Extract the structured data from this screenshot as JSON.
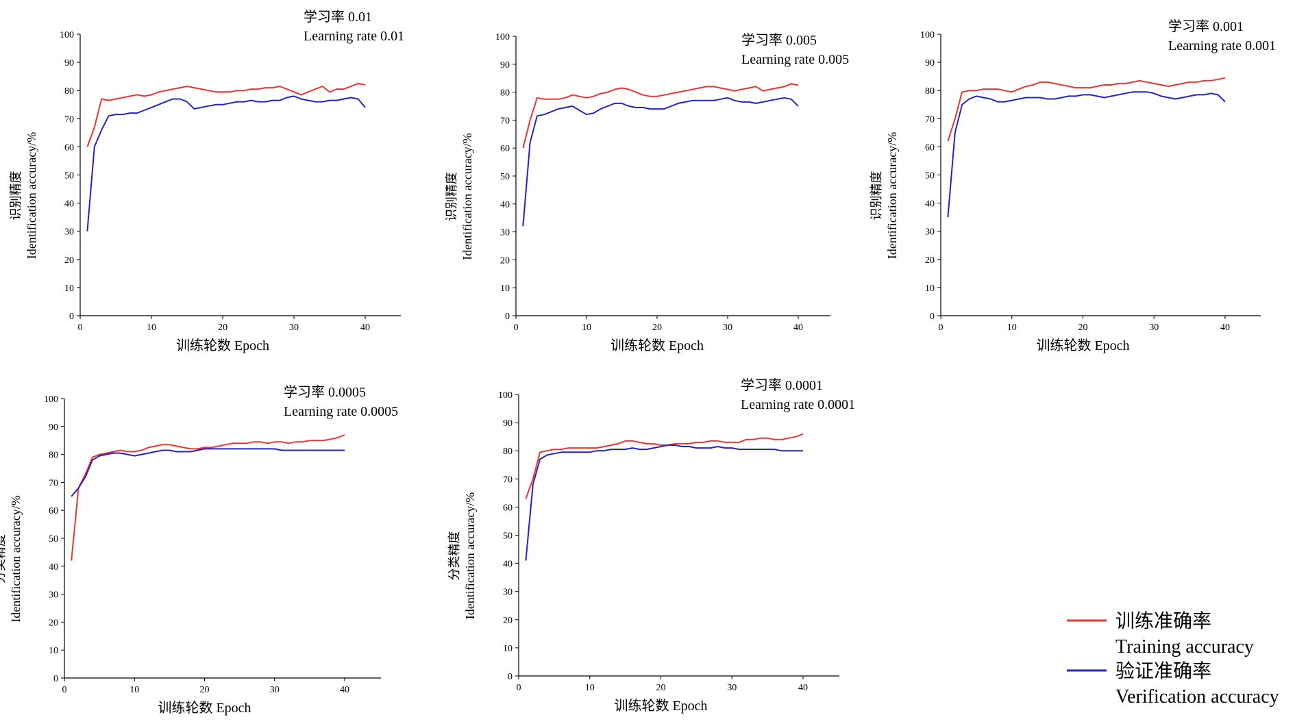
{
  "colors": {
    "training": "#ee3333",
    "verification": "#2222cc",
    "axis": "#000000"
  },
  "legend": {
    "entries": [
      {
        "cn": "训练准确率",
        "en": "Training accuracy",
        "color": "#ee3333"
      },
      {
        "cn": "验证准确率",
        "en": "Verification accuracy",
        "color": "#2222cc"
      }
    ]
  },
  "chart_data": [
    {
      "type": "line",
      "note_cn": "学习率  0.01",
      "note_en": "Learning rate 0.01",
      "ylabel_cn": "识别精度",
      "ylabel_en": "Identification accuracy/%",
      "xlabel": "训练轮数  Epoch",
      "xlim": [
        0,
        40
      ],
      "ylim": [
        0,
        100
      ],
      "xticks": [
        0,
        10,
        20,
        30,
        40
      ],
      "yticks": [
        0,
        10,
        20,
        30,
        40,
        50,
        60,
        70,
        80,
        90,
        100
      ],
      "x": [
        1,
        2,
        3,
        4,
        5,
        6,
        7,
        8,
        9,
        10,
        11,
        12,
        13,
        14,
        15,
        16,
        17,
        18,
        19,
        20,
        21,
        22,
        23,
        24,
        25,
        26,
        27,
        28,
        29,
        30,
        31,
        32,
        33,
        34,
        35,
        36,
        37,
        38,
        39,
        40
      ],
      "series": [
        {
          "key": "training",
          "values": [
            60,
            67,
            77,
            76.5,
            77,
            77.5,
            78,
            78.5,
            78,
            78.5,
            79.5,
            80,
            80.5,
            81,
            81.5,
            81,
            80.5,
            80,
            79.5,
            79.5,
            79.5,
            80,
            80,
            80.5,
            80.5,
            81,
            81,
            81.5,
            80.5,
            79.5,
            78.5,
            79.5,
            80.5,
            81.5,
            79.5,
            80.5,
            80.5,
            81.5,
            82.5,
            82
          ]
        },
        {
          "key": "verification",
          "values": [
            30,
            60,
            66,
            71,
            71.5,
            71.5,
            72,
            72,
            73,
            74,
            75,
            76,
            77,
            77,
            76,
            73.5,
            74,
            74.5,
            75,
            75,
            75.5,
            76,
            76,
            76.5,
            76,
            76,
            76.5,
            76.5,
            77.5,
            78,
            77,
            76.5,
            76,
            76,
            76.5,
            76.5,
            77,
            77.5,
            77,
            74
          ]
        }
      ]
    },
    {
      "type": "line",
      "note_cn": "学习率  0.005",
      "note_en": "Learning rate 0.005",
      "ylabel_cn": "识别精度",
      "ylabel_en": "Identification accuracy/%",
      "xlabel": "训练轮数  Epoch",
      "xlim": [
        0,
        40
      ],
      "ylim": [
        0,
        100
      ],
      "xticks": [
        0,
        10,
        20,
        30,
        40
      ],
      "yticks": [
        0,
        10,
        20,
        30,
        40,
        50,
        60,
        70,
        80,
        90,
        100
      ],
      "x": [
        1,
        2,
        3,
        4,
        5,
        6,
        7,
        8,
        9,
        10,
        11,
        12,
        13,
        14,
        15,
        16,
        17,
        18,
        19,
        20,
        21,
        22,
        23,
        24,
        25,
        26,
        27,
        28,
        29,
        30,
        31,
        32,
        33,
        34,
        35,
        36,
        37,
        38,
        39,
        40
      ],
      "series": [
        {
          "key": "training",
          "values": [
            60,
            70,
            78,
            77.5,
            77.5,
            77.5,
            78,
            79,
            78.5,
            78,
            78.5,
            79.5,
            80,
            81,
            81.5,
            81,
            80,
            79,
            78.5,
            78.5,
            79,
            79.5,
            80,
            80.5,
            81,
            81.5,
            82,
            82,
            81.5,
            81,
            80.5,
            81,
            81.5,
            82,
            80.5,
            81,
            81.5,
            82,
            83,
            82.5
          ]
        },
        {
          "key": "verification",
          "values": [
            32,
            62,
            71.5,
            72,
            73,
            74,
            74.5,
            75,
            73.5,
            72,
            72.5,
            74,
            75,
            76,
            76,
            75,
            74.5,
            74.5,
            74,
            74,
            74,
            75,
            76,
            76.5,
            77,
            77,
            77,
            77,
            77.5,
            78,
            77,
            76.5,
            76.5,
            76,
            76.5,
            77,
            77.5,
            78,
            77.5,
            75
          ]
        }
      ]
    },
    {
      "type": "line",
      "note_cn": "学习率  0.001",
      "note_en": "Learning rate 0.001",
      "ylabel_cn": "识别精度",
      "ylabel_en": "Identification accuracy/%",
      "xlabel": "训练轮数  Epoch",
      "xlim": [
        0,
        40
      ],
      "ylim": [
        0,
        100
      ],
      "xticks": [
        0,
        10,
        20,
        30,
        40
      ],
      "yticks": [
        0,
        10,
        20,
        30,
        40,
        50,
        60,
        70,
        80,
        90,
        100
      ],
      "x": [
        1,
        2,
        3,
        4,
        5,
        6,
        7,
        8,
        9,
        10,
        11,
        12,
        13,
        14,
        15,
        16,
        17,
        18,
        19,
        20,
        21,
        22,
        23,
        24,
        25,
        26,
        27,
        28,
        29,
        30,
        31,
        32,
        33,
        34,
        35,
        36,
        37,
        38,
        39,
        40
      ],
      "series": [
        {
          "key": "training",
          "values": [
            62,
            70,
            79.5,
            80,
            80,
            80.5,
            80.5,
            80.5,
            80,
            79.5,
            80.5,
            81.5,
            82,
            83,
            83,
            82.5,
            82,
            81.5,
            81,
            81,
            81,
            81.5,
            82,
            82,
            82.5,
            82.5,
            83,
            83.5,
            83,
            82.5,
            82,
            81.5,
            82,
            82.5,
            83,
            83,
            83.5,
            83.5,
            84,
            84.5
          ]
        },
        {
          "key": "verification",
          "values": [
            35,
            65,
            75,
            77,
            78,
            77.5,
            77,
            76,
            76,
            76.5,
            77,
            77.5,
            77.5,
            77.5,
            77,
            77,
            77.5,
            78,
            78,
            78.5,
            78.5,
            78,
            77.5,
            78,
            78.5,
            79,
            79.5,
            79.5,
            79.5,
            79,
            78,
            77.5,
            77,
            77.5,
            78,
            78.5,
            78.5,
            79,
            78.5,
            76
          ]
        }
      ]
    },
    {
      "type": "line",
      "note_cn": "学习率  0.0005",
      "note_en": "Learning rate 0.0005",
      "ylabel_cn": "分类精度",
      "ylabel_en": "Identification accuracy/%",
      "xlabel": "训练轮数  Epoch",
      "xlim": [
        0,
        40
      ],
      "ylim": [
        0,
        100
      ],
      "xticks": [
        0,
        10,
        20,
        30,
        40
      ],
      "yticks": [
        0,
        10,
        20,
        30,
        40,
        50,
        60,
        70,
        80,
        90,
        100
      ],
      "x": [
        1,
        2,
        3,
        4,
        5,
        6,
        7,
        8,
        9,
        10,
        11,
        12,
        13,
        14,
        15,
        16,
        17,
        18,
        19,
        20,
        21,
        22,
        23,
        24,
        25,
        26,
        27,
        28,
        29,
        30,
        31,
        32,
        33,
        34,
        35,
        36,
        37,
        38,
        39,
        40
      ],
      "series": [
        {
          "key": "training",
          "values": [
            42,
            68,
            73,
            79,
            80,
            80.5,
            81,
            81.5,
            81,
            81,
            81.5,
            82.5,
            83,
            83.5,
            83.5,
            83,
            82.5,
            82,
            82,
            82.5,
            82.5,
            83,
            83.5,
            84,
            84,
            84,
            84.5,
            84.5,
            84,
            84.5,
            84.5,
            84,
            84.5,
            84.5,
            85,
            85,
            85,
            85.5,
            86,
            87
          ]
        },
        {
          "key": "verification",
          "values": [
            65,
            68,
            72,
            78,
            79.5,
            80,
            80.5,
            80.5,
            80,
            79.5,
            80,
            80.5,
            81,
            81.5,
            81.5,
            81,
            81,
            81,
            81.5,
            82,
            82,
            82,
            82,
            82,
            82,
            82,
            82,
            82,
            82,
            82,
            81.5,
            81.5,
            81.5,
            81.5,
            81.5,
            81.5,
            81.5,
            81.5,
            81.5,
            81.5
          ]
        }
      ]
    },
    {
      "type": "line",
      "note_cn": "学习率  0.0001",
      "note_en": "Learning rate 0.0001",
      "ylabel_cn": "分类精度",
      "ylabel_en": "Identification accuracy/%",
      "xlabel": "训练轮数  Epoch",
      "xlim": [
        0,
        40
      ],
      "ylim": [
        0,
        100
      ],
      "xticks": [
        0,
        10,
        20,
        30,
        40
      ],
      "yticks": [
        0,
        10,
        20,
        30,
        40,
        50,
        60,
        70,
        80,
        90,
        100
      ],
      "x": [
        1,
        2,
        3,
        4,
        5,
        6,
        7,
        8,
        9,
        10,
        11,
        12,
        13,
        14,
        15,
        16,
        17,
        18,
        19,
        20,
        21,
        22,
        23,
        24,
        25,
        26,
        27,
        28,
        29,
        30,
        31,
        32,
        33,
        34,
        35,
        36,
        37,
        38,
        39,
        40
      ],
      "series": [
        {
          "key": "training",
          "values": [
            63,
            70,
            79.5,
            80,
            80.5,
            80.5,
            81,
            81,
            81,
            81,
            81,
            81.5,
            82,
            82.5,
            83.5,
            83.5,
            83,
            82.5,
            82.5,
            82,
            82,
            82.5,
            82.5,
            82.5,
            83,
            83,
            83.5,
            83.5,
            83,
            83,
            83,
            84,
            84,
            84.5,
            84.5,
            84,
            84,
            84.5,
            85,
            86
          ]
        },
        {
          "key": "verification",
          "values": [
            41,
            68,
            77,
            78.5,
            79,
            79.5,
            79.5,
            79.5,
            79.5,
            79.5,
            80,
            80,
            80.5,
            80.5,
            80.5,
            81,
            80.5,
            80.5,
            81,
            81.5,
            82,
            82,
            81.5,
            81.5,
            81,
            81,
            81,
            81.5,
            81,
            81,
            80.5,
            80.5,
            80.5,
            80.5,
            80.5,
            80.5,
            80,
            80,
            80,
            80
          ]
        }
      ]
    }
  ]
}
